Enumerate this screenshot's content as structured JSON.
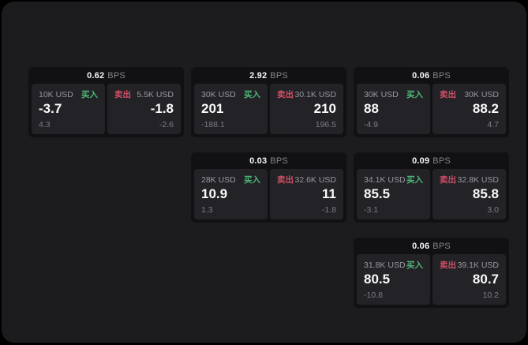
{
  "labels": {
    "bps_unit": "BPS",
    "buy": "买入",
    "sell": "卖出"
  },
  "colors": {
    "page_background": "#000000",
    "panel_background": "#1c1c1e",
    "card_background": "#111114",
    "tile_background": "#232327",
    "buy_green": "#4fb878",
    "sell_red": "#cf4f66",
    "text_primary": "#f5f5f6",
    "text_muted": "#98989d"
  },
  "cards": [
    {
      "bps": "0.62",
      "buy": {
        "size": "10K USD",
        "price": "-3.7",
        "sub": "4.3"
      },
      "sell": {
        "size": "5.5K USD",
        "price": "-1.8",
        "sub": "-2.6"
      }
    },
    {
      "bps": "2.92",
      "buy": {
        "size": "30K USD",
        "price": "201",
        "sub": "-188.1"
      },
      "sell": {
        "size": "30.1K USD",
        "price": "210",
        "sub": "196.5"
      }
    },
    {
      "bps": "0.06",
      "buy": {
        "size": "30K USD",
        "price": "88",
        "sub": "-4.9"
      },
      "sell": {
        "size": "30K USD",
        "price": "88.2",
        "sub": "4.7"
      }
    },
    {
      "bps": "0.03",
      "buy": {
        "size": "28K USD",
        "price": "10.9",
        "sub": "1.3"
      },
      "sell": {
        "size": "32.6K USD",
        "price": "11",
        "sub": "-1.8"
      }
    },
    {
      "bps": "0.09",
      "buy": {
        "size": "34.1K USD",
        "price": "85.5",
        "sub": "-3.1"
      },
      "sell": {
        "size": "32.8K USD",
        "price": "85.8",
        "sub": "3.0"
      }
    },
    {
      "bps": "0.06",
      "buy": {
        "size": "31.8K USD",
        "price": "80.5",
        "sub": "-10.8"
      },
      "sell": {
        "size": "39.1K USD",
        "price": "80.7",
        "sub": "10.2"
      }
    }
  ]
}
